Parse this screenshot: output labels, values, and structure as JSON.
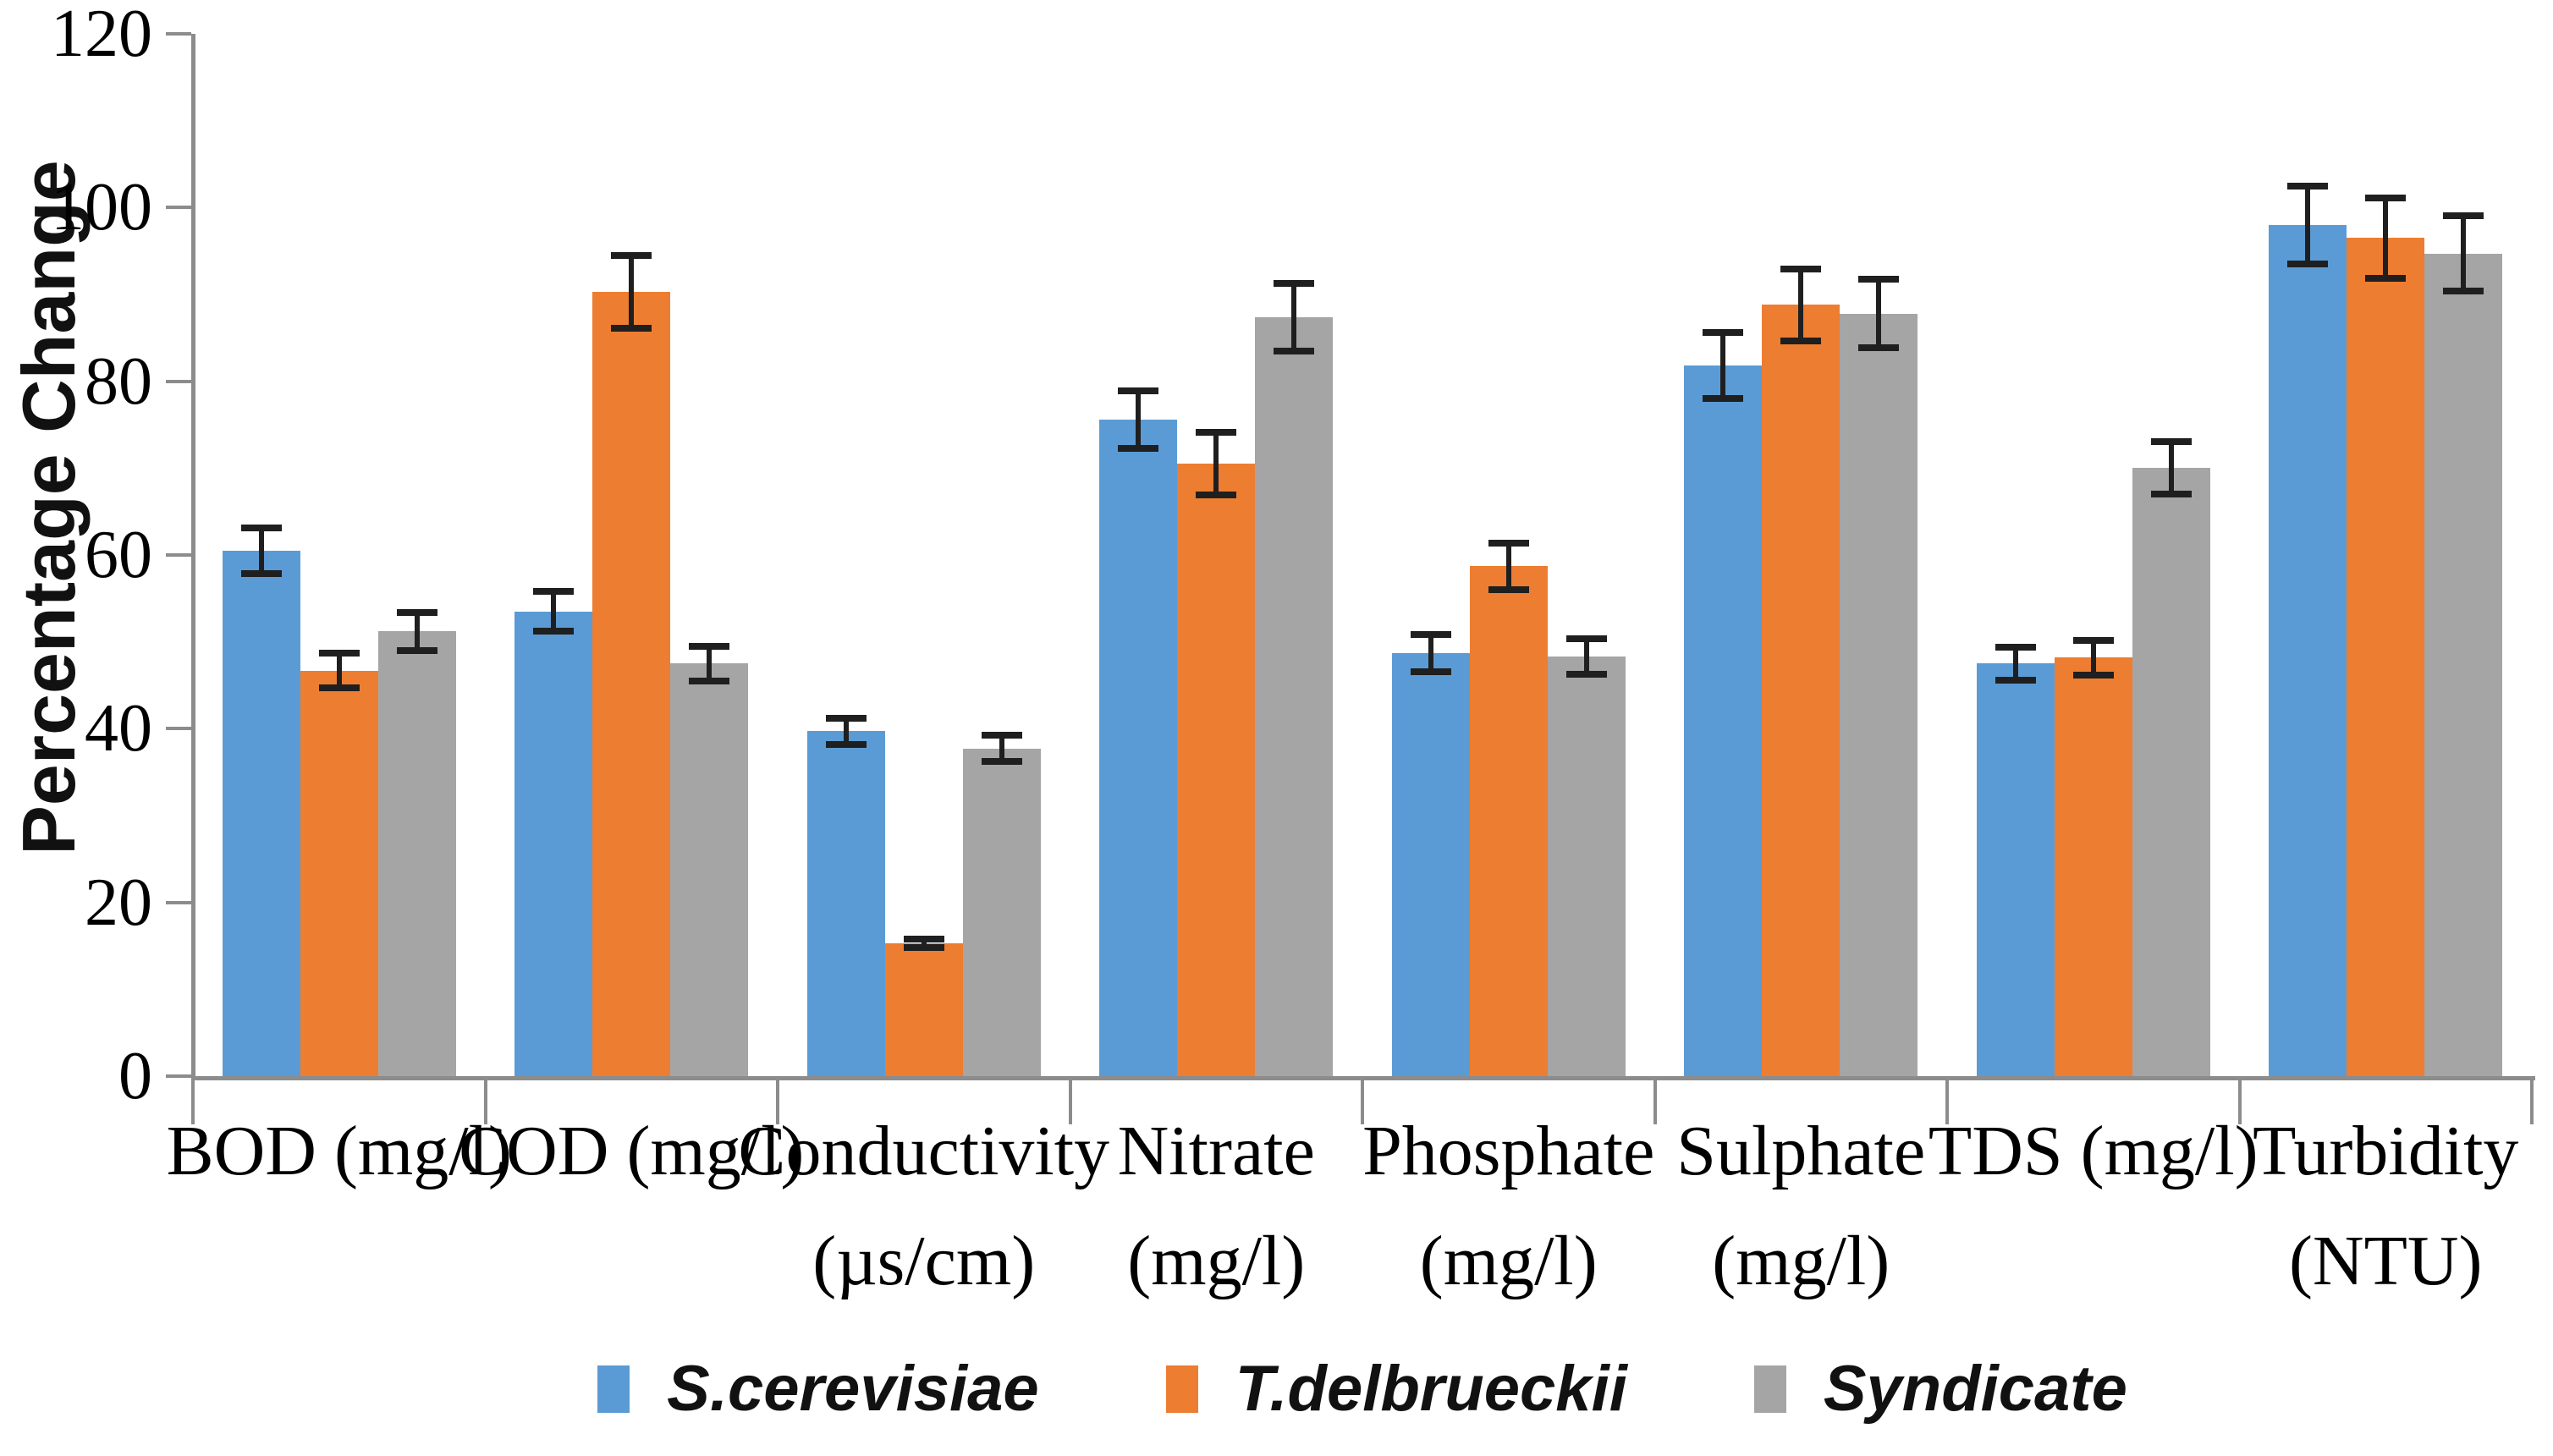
{
  "chart_data": {
    "type": "bar",
    "title": "",
    "ylabel": "Percentage Change",
    "xlabel": "",
    "ylim": [
      0,
      120
    ],
    "yticks": [
      0,
      20,
      40,
      60,
      80,
      100,
      120
    ],
    "grid": false,
    "legend_position": "bottom",
    "error_bars": true,
    "categories": [
      {
        "lines": [
          "BOD (mg/l)"
        ]
      },
      {
        "lines": [
          "COD (mg/l)"
        ]
      },
      {
        "lines": [
          "Conductivity",
          "(µs/cm)"
        ]
      },
      {
        "lines": [
          "Nitrate",
          "(mg/l)"
        ]
      },
      {
        "lines": [
          "Phosphate",
          "(mg/l)"
        ]
      },
      {
        "lines": [
          "Sulphate",
          "(mg/l)"
        ]
      },
      {
        "lines": [
          "TDS (mg/l)"
        ]
      },
      {
        "lines": [
          "Turbidity",
          "(NTU)"
        ]
      }
    ],
    "series": [
      {
        "name": "S.cerevisiae",
        "color": "#5B9BD5",
        "values": [
          60.5,
          53.5,
          39.7,
          75.6,
          48.7,
          81.8,
          47.5,
          98.0
        ],
        "errors": [
          3.0,
          2.7,
          1.9,
          3.7,
          2.5,
          4.2,
          2.3,
          4.9
        ]
      },
      {
        "name": "T.delbrueckii",
        "color": "#ED7D31",
        "values": [
          46.7,
          90.3,
          15.3,
          70.5,
          58.7,
          88.8,
          48.2,
          96.5
        ],
        "errors": [
          2.4,
          4.6,
          0.9,
          4.0,
          3.1,
          4.5,
          2.4,
          5.0
        ]
      },
      {
        "name": "Syndicate",
        "color": "#A5A5A5",
        "values": [
          51.2,
          47.5,
          37.7,
          87.4,
          48.3,
          87.8,
          70.0,
          94.7
        ],
        "errors": [
          2.6,
          2.4,
          1.9,
          4.3,
          2.4,
          4.3,
          3.4,
          4.7
        ]
      }
    ]
  }
}
